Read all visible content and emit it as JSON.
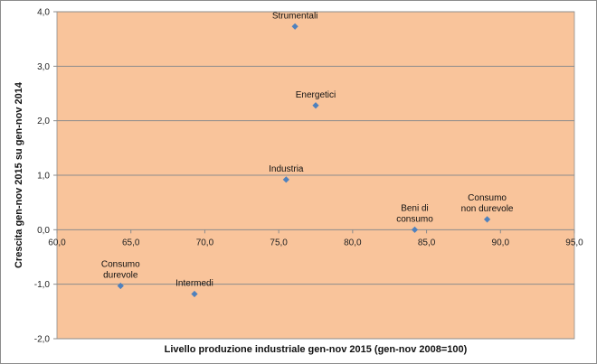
{
  "chart_data": {
    "type": "scatter",
    "title": "",
    "xlabel": "Livello produzione industriale gen-nov 2015 (gen-nov 2008=100)",
    "ylabel": "Crescita gen-nov 2015 su gen-nov 2014",
    "xlim": [
      60,
      95
    ],
    "ylim": [
      -2,
      4
    ],
    "xticks": [
      60,
      65,
      70,
      75,
      80,
      85,
      90,
      95
    ],
    "yticks": [
      -2,
      -1,
      0,
      1,
      2,
      3,
      4
    ],
    "xtick_labels": [
      "60,0",
      "65,0",
      "70,0",
      "75,0",
      "80,0",
      "85,0",
      "90,0",
      "95,0"
    ],
    "ytick_labels": [
      "-2,0",
      "-1,0",
      "0,0",
      "1,0",
      "2,0",
      "3,0",
      "4,0"
    ],
    "grid": "horizontal",
    "plot_background": "#f9c49b",
    "marker_color": "#4f81bd",
    "gridline_color": "#8c8c8c",
    "points": [
      {
        "label": [
          "Strumentali"
        ],
        "x": 76.1,
        "y": 3.73
      },
      {
        "label": [
          "Energetici"
        ],
        "x": 77.5,
        "y": 2.28
      },
      {
        "label": [
          "Industria"
        ],
        "x": 75.5,
        "y": 0.92
      },
      {
        "label": [
          "Beni di",
          "consumo"
        ],
        "x": 84.2,
        "y": 0.0
      },
      {
        "label": [
          "Consumo",
          "non durevole"
        ],
        "x": 89.1,
        "y": 0.19
      },
      {
        "label": [
          "Consumo",
          "durevole"
        ],
        "x": 64.3,
        "y": -1.03
      },
      {
        "label": [
          "Intermedi"
        ],
        "x": 69.3,
        "y": -1.18
      }
    ]
  }
}
